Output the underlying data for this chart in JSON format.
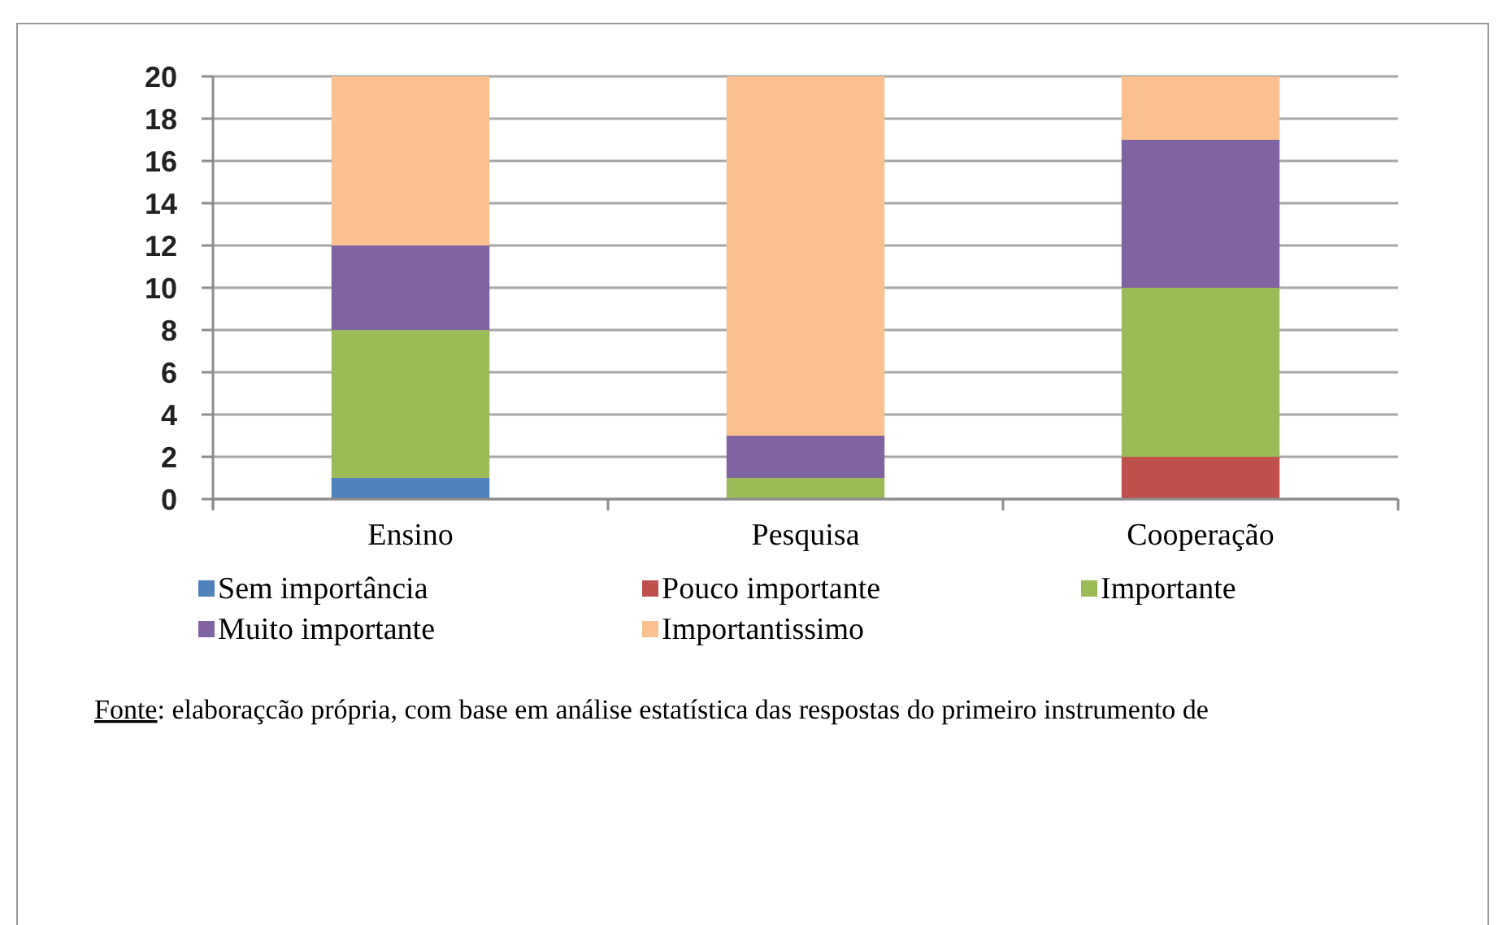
{
  "chart_data": {
    "type": "bar",
    "stacked": true,
    "categories": [
      "Ensino",
      "Pesquisa",
      "Cooperação"
    ],
    "series": [
      {
        "name": "Sem importância",
        "color": "#4f81bd",
        "values": [
          1,
          0,
          0
        ]
      },
      {
        "name": "Pouco importante",
        "color": "#c0504d",
        "values": [
          0,
          0,
          2
        ]
      },
      {
        "name": "Importante",
        "color": "#9bbb59",
        "values": [
          7,
          1,
          8
        ]
      },
      {
        "name": "Muito importante",
        "color": "#8064a2",
        "values": [
          4,
          2,
          7
        ]
      },
      {
        "name": "Importantissimo",
        "color": "#fac08f",
        "values": [
          8,
          17,
          3
        ]
      }
    ],
    "ylim": [
      0,
      20
    ],
    "yticks": [
      0,
      2,
      4,
      6,
      8,
      10,
      12,
      14,
      16,
      18,
      20
    ],
    "grid": "y",
    "legend": "bottom",
    "annotations": [
      "Fonte: elaboraçcão própria, com base em análise estatística das respostas do primeiro instrumento de"
    ]
  }
}
